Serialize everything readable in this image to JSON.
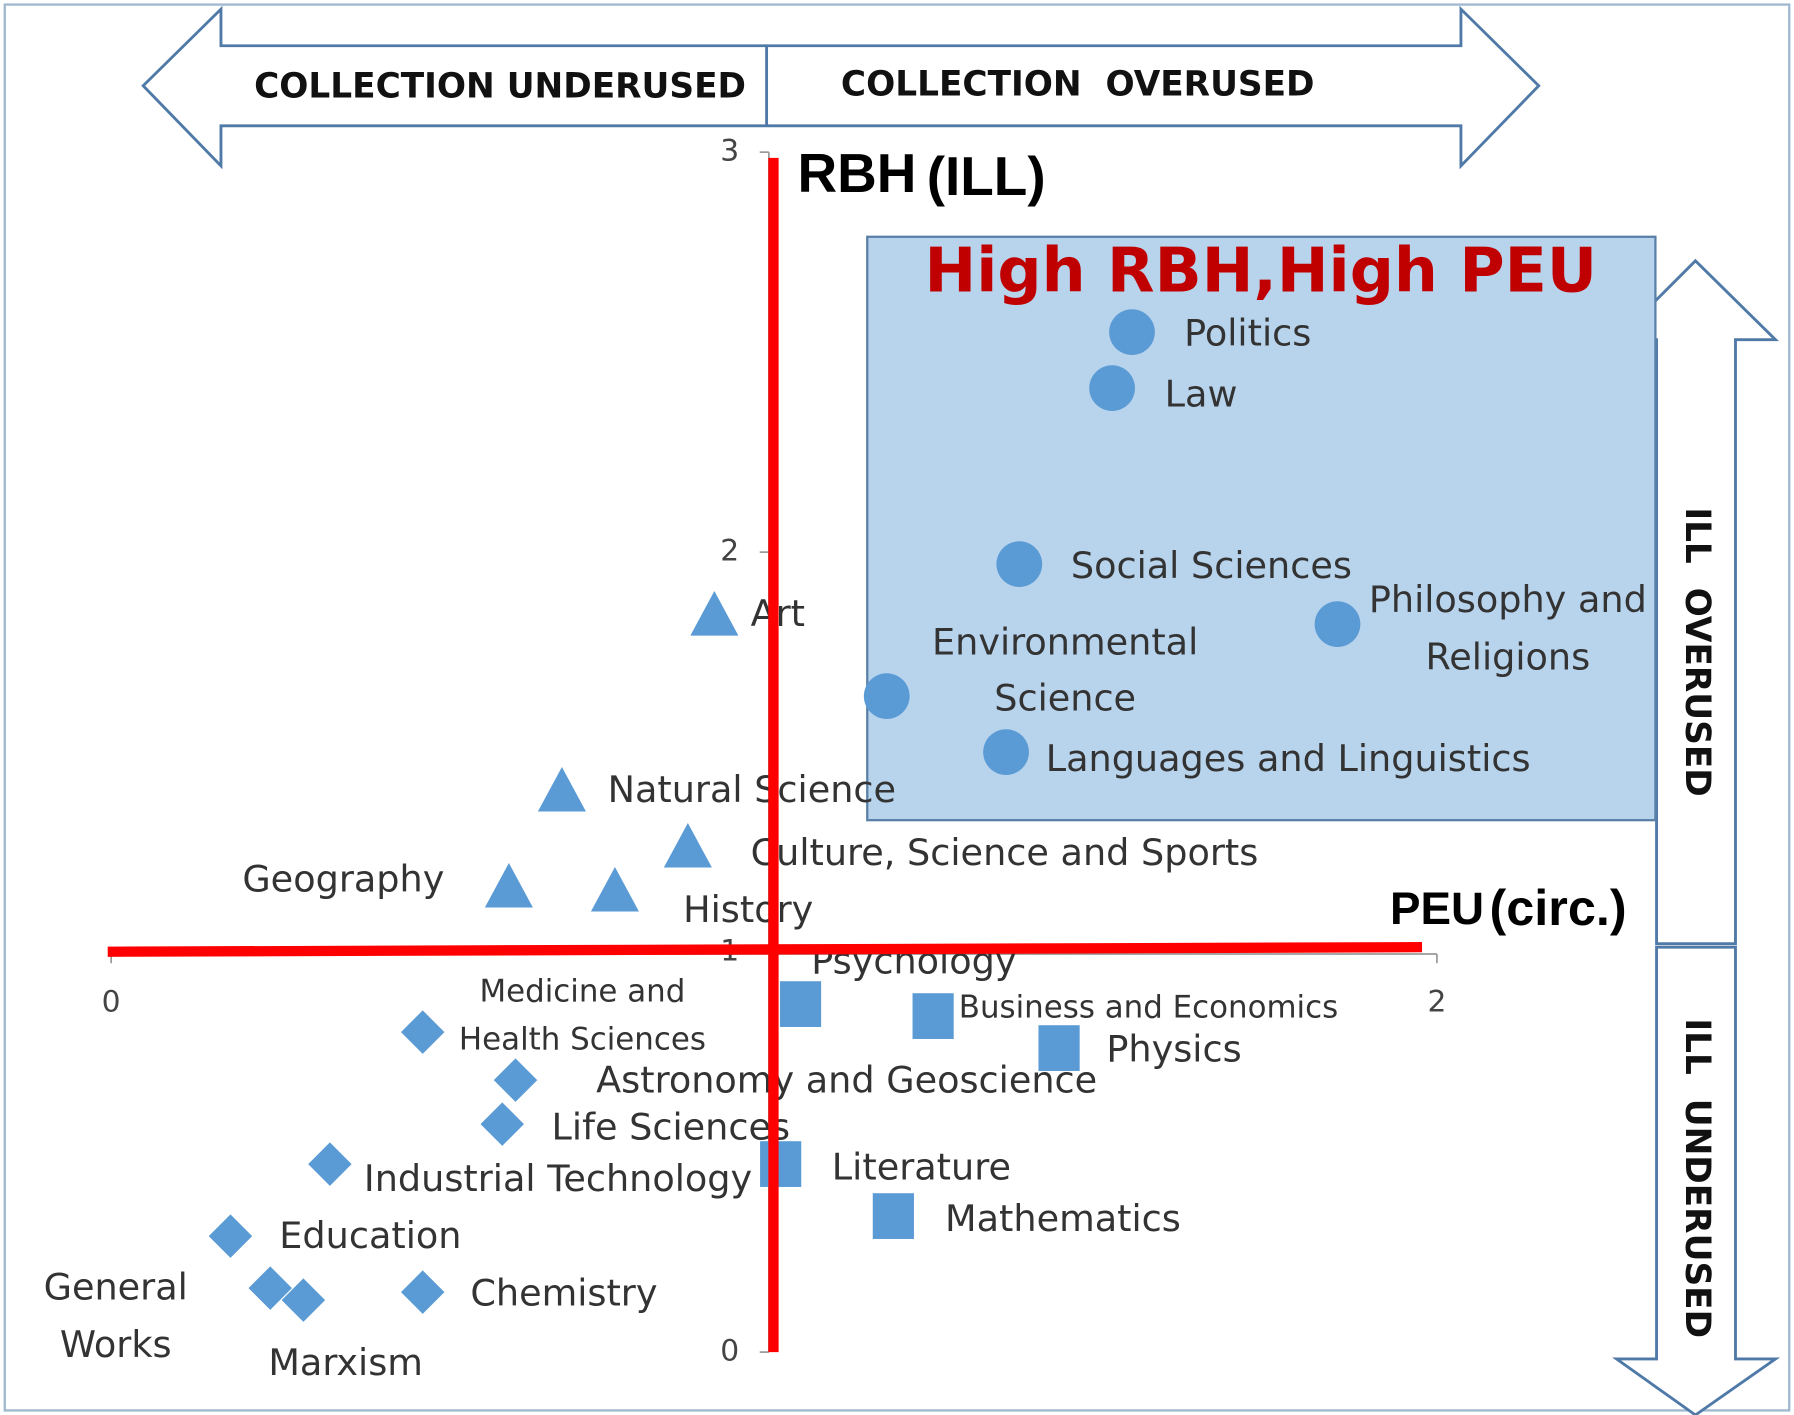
{
  "chart_data": {
    "type": "scatter",
    "top_left_label": "COLLECTION UNDERUSED",
    "top_right_label": "COLLECTION  OVERUSED",
    "y_axis_title": [
      "RBH",
      "(ILL)"
    ],
    "x_axis_title": [
      "PEU",
      "(circ.)"
    ],
    "quadrant_label": "High RBH,High PEU",
    "right_top_label": "ILL  OVERUSED",
    "right_bottom_label": "ILL  UNDERUSED",
    "xlim": [
      0,
      2
    ],
    "xticks": [
      0,
      2
    ],
    "ylim": [
      0,
      3
    ],
    "yticks": [
      0,
      1,
      2,
      3
    ],
    "color": "#5b9bd5",
    "points": [
      {
        "label": [
          "Politics"
        ],
        "x": 1.54,
        "y": 2.55,
        "marker": "circle"
      },
      {
        "label": [
          "Law"
        ],
        "x": 1.51,
        "y": 2.41,
        "marker": "circle"
      },
      {
        "label": [
          "Social Sciences"
        ],
        "x": 1.37,
        "y": 1.97,
        "marker": "circle"
      },
      {
        "label": [
          "Philosophy and",
          "Religions"
        ],
        "x": 1.85,
        "y": 1.82,
        "marker": "circle"
      },
      {
        "label": [
          "Environmental",
          "Science"
        ],
        "x": 1.17,
        "y": 1.64,
        "marker": "circle"
      },
      {
        "label": [
          "Languages and Linguistics"
        ],
        "x": 1.35,
        "y": 1.5,
        "marker": "circle"
      },
      {
        "label": [
          "Art"
        ],
        "x": 0.91,
        "y": 1.84,
        "marker": "triangle"
      },
      {
        "label": [
          "Natural Science"
        ],
        "x": 0.68,
        "y": 1.4,
        "marker": "triangle"
      },
      {
        "label": [
          "Culture, Science and Sports"
        ],
        "x": 0.87,
        "y": 1.26,
        "marker": "triangle"
      },
      {
        "label": [
          "Geography"
        ],
        "x": 0.6,
        "y": 1.16,
        "marker": "triangle"
      },
      {
        "label": [
          "History"
        ],
        "x": 0.76,
        "y": 1.15,
        "marker": "triangle"
      },
      {
        "label": [
          "Psychology"
        ],
        "x": 1.04,
        "y": 0.87,
        "marker": "square"
      },
      {
        "label": [
          "Business and Economics"
        ],
        "x": 1.24,
        "y": 0.84,
        "marker": "square"
      },
      {
        "label": [
          "Physics"
        ],
        "x": 1.43,
        "y": 0.76,
        "marker": "square"
      },
      {
        "label": [
          "Literature"
        ],
        "x": 1.01,
        "y": 0.47,
        "marker": "square"
      },
      {
        "label": [
          "Mathematics"
        ],
        "x": 1.18,
        "y": 0.34,
        "marker": "square"
      },
      {
        "label": [
          "Medicine and",
          "Health Sciences"
        ],
        "x": 0.47,
        "y": 0.8,
        "marker": "diamond"
      },
      {
        "label": [
          "Astronomy and Geoscience"
        ],
        "x": 0.61,
        "y": 0.68,
        "marker": "diamond"
      },
      {
        "label": [
          "Life Sciences"
        ],
        "x": 0.59,
        "y": 0.57,
        "marker": "diamond"
      },
      {
        "label": [
          "Industrial Technology"
        ],
        "x": 0.33,
        "y": 0.47,
        "marker": "diamond"
      },
      {
        "label": [
          "Education"
        ],
        "x": 0.18,
        "y": 0.29,
        "marker": "diamond"
      },
      {
        "label": [
          "General",
          "Works"
        ],
        "x": 0.24,
        "y": 0.16,
        "marker": "diamond"
      },
      {
        "label": [
          "Marxism"
        ],
        "x": 0.29,
        "y": 0.13,
        "marker": "diamond"
      },
      {
        "label": [
          "Chemistry"
        ],
        "x": 0.47,
        "y": 0.15,
        "marker": "diamond"
      }
    ]
  }
}
